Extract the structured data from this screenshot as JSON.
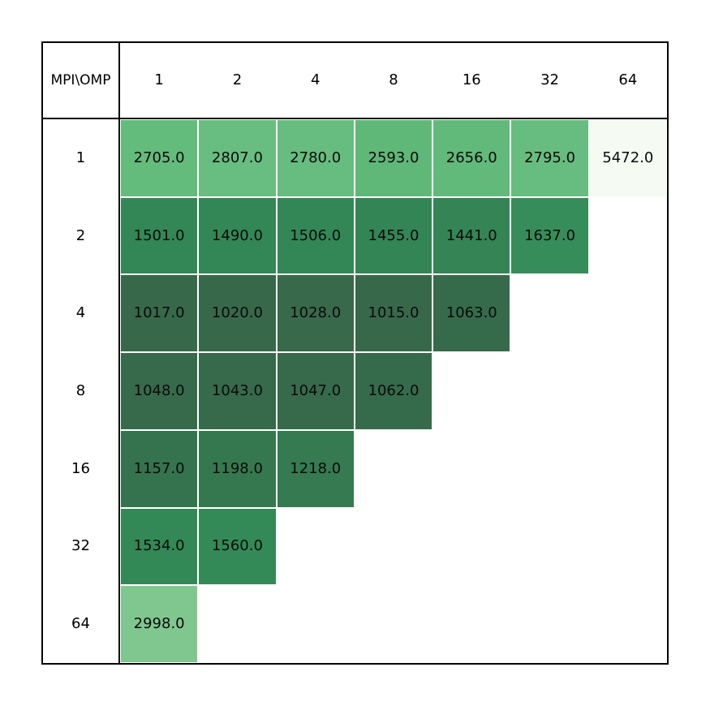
{
  "chart_data": {
    "type": "heatmap",
    "title": "",
    "corner_label": "MPI\\OMP",
    "col_headers": [
      "1",
      "2",
      "4",
      "8",
      "16",
      "32",
      "64"
    ],
    "row_headers": [
      "1",
      "2",
      "4",
      "8",
      "16",
      "32",
      "64"
    ],
    "value_decimals": 1,
    "values": [
      [
        2705.0,
        2807.0,
        2780.0,
        2593.0,
        2656.0,
        2795.0,
        5472.0
      ],
      [
        1501.0,
        1490.0,
        1506.0,
        1455.0,
        1441.0,
        1637.0,
        null
      ],
      [
        1017.0,
        1020.0,
        1028.0,
        1015.0,
        1063.0,
        null,
        null
      ],
      [
        1048.0,
        1043.0,
        1047.0,
        1062.0,
        null,
        null,
        null
      ],
      [
        1157.0,
        1198.0,
        1218.0,
        null,
        null,
        null,
        null
      ],
      [
        1534.0,
        1560.0,
        null,
        null,
        null,
        null,
        null
      ],
      [
        2998.0,
        null,
        null,
        null,
        null,
        null,
        null
      ]
    ],
    "cell_colors": [
      [
        "#63bb7c",
        "#68be80",
        "#66bd7f",
        "#5fb878",
        "#61ba7a",
        "#67bd7f",
        "#f5faf3"
      ],
      [
        "#338756",
        "#338756",
        "#338756",
        "#348555",
        "#348455",
        "#378d5a",
        null
      ],
      [
        "#38684a",
        "#38684a",
        "#37694a",
        "#38684a",
        "#356b4a",
        null,
        null
      ],
      [
        "#366a4a",
        "#366a4a",
        "#366a4a",
        "#356b4a",
        null,
        null,
        null
      ],
      [
        "#34734d",
        "#35784f",
        "#357a50",
        null,
        null,
        null,
        null
      ],
      [
        "#338956",
        "#338a57",
        null,
        null,
        null,
        null,
        null
      ],
      [
        "#7fc78e",
        null,
        null,
        null,
        null,
        null,
        null
      ]
    ],
    "colors": {
      "min_value_color": "#38684a",
      "max_value_color": "#f5faf3",
      "grid_line_color": "#ffffff",
      "border_color": "#000000",
      "text_color": "#0a0a0a"
    },
    "value_range": [
      1015.0,
      5472.0
    ],
    "layout": {
      "empty_cell_rule": "MPI x OMP > 64",
      "legend": "none"
    }
  }
}
